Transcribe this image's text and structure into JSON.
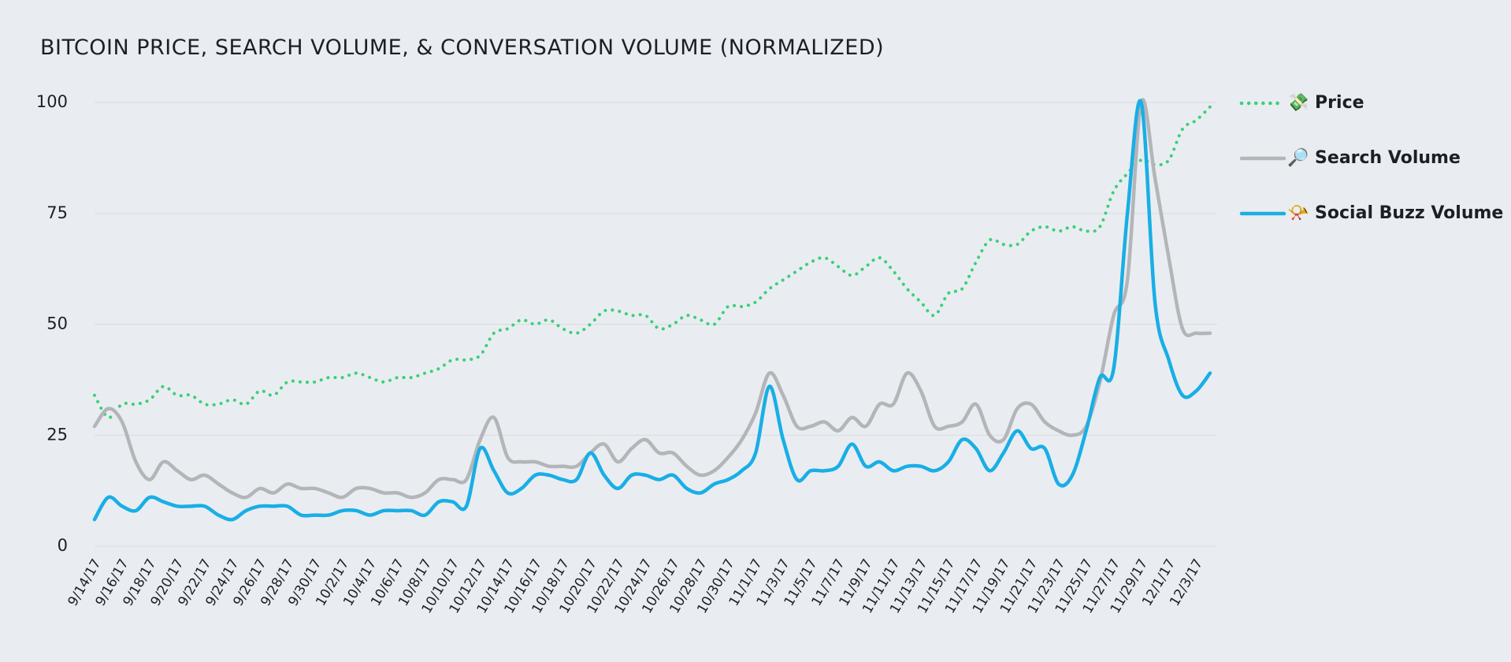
{
  "chart_data": {
    "type": "line",
    "title": "BITCOIN PRICE, SEARCH VOLUME, & CONVERSATION VOLUME (NORMALIZED)",
    "categories": [
      "9/14/17",
      null,
      "9/16/17",
      null,
      "9/18/17",
      null,
      "9/20/17",
      null,
      "9/22/17",
      null,
      "9/24/17",
      null,
      "9/26/17",
      null,
      "9/28/17",
      null,
      "9/30/17",
      null,
      "10/2/17",
      null,
      "10/4/17",
      null,
      "10/6/17",
      null,
      "10/8/17",
      null,
      "10/10/17",
      null,
      "10/12/17",
      null,
      "10/14/17",
      null,
      "10/16/17",
      null,
      "10/18/17",
      null,
      "10/20/17",
      null,
      "10/22/17",
      null,
      "10/24/17",
      null,
      "10/26/17",
      null,
      "10/28/17",
      null,
      "10/30/17",
      null,
      "11/1/17",
      null,
      "11/3/17",
      null,
      "11/5/17",
      null,
      "11/7/17",
      null,
      "11/9/17",
      null,
      "11/11/17",
      null,
      "11/13/17",
      null,
      "11/15/17",
      null,
      "11/17/17",
      null,
      "11/19/17",
      null,
      "11/21/17",
      null,
      "11/23/17",
      null,
      "11/25/17",
      null,
      "11/27/17",
      null,
      "11/29/17",
      null,
      "12/1/17",
      null,
      "12/3/17",
      null
    ],
    "series": [
      {
        "name": "💸 Price",
        "color": "#3ccf7a",
        "dashed": true,
        "values": [
          34,
          29,
          32,
          32,
          33,
          36,
          34,
          34,
          32,
          32,
          33,
          32,
          35,
          34,
          37,
          37,
          37,
          38,
          38,
          39,
          38,
          37,
          38,
          38,
          39,
          40,
          42,
          42,
          43,
          48,
          49,
          51,
          50,
          51,
          49,
          48,
          50,
          53,
          53,
          52,
          52,
          49,
          50,
          52,
          51,
          50,
          54,
          54,
          55,
          58,
          60,
          62,
          64,
          65,
          63,
          61,
          63,
          65,
          62,
          58,
          55,
          52,
          57,
          58,
          64,
          69,
          68,
          68,
          71,
          72,
          71,
          72,
          71,
          72,
          80,
          84,
          87,
          86,
          87,
          94,
          96,
          99
        ]
      },
      {
        "name": "🔎 Search Volume",
        "color": "#b3b5b8",
        "dashed": false,
        "values": [
          27,
          31,
          28,
          19,
          15,
          19,
          17,
          15,
          16,
          14,
          12,
          11,
          13,
          12,
          14,
          13,
          13,
          12,
          11,
          13,
          13,
          12,
          12,
          11,
          12,
          15,
          15,
          15,
          24,
          29,
          20,
          19,
          19,
          18,
          18,
          18,
          21,
          23,
          19,
          22,
          24,
          21,
          21,
          18,
          16,
          17,
          20,
          24,
          30,
          39,
          34,
          27,
          27,
          28,
          26,
          29,
          27,
          32,
          32,
          39,
          35,
          27,
          27,
          28,
          32,
          25,
          24,
          31,
          32,
          28,
          26,
          25,
          27,
          37,
          52,
          60,
          100,
          83,
          65,
          49,
          48,
          48
        ]
      },
      {
        "name": "📯 Social Buzz Volume",
        "color": "#19aee6",
        "dashed": false,
        "values": [
          6,
          11,
          9,
          8,
          11,
          10,
          9,
          9,
          9,
          7,
          6,
          8,
          9,
          9,
          9,
          7,
          7,
          7,
          8,
          8,
          7,
          8,
          8,
          8,
          7,
          10,
          10,
          9,
          22,
          17,
          12,
          13,
          16,
          16,
          15,
          15,
          21,
          16,
          13,
          16,
          16,
          15,
          16,
          13,
          12,
          14,
          15,
          17,
          21,
          36,
          24,
          15,
          17,
          17,
          18,
          23,
          18,
          19,
          17,
          18,
          18,
          17,
          19,
          24,
          22,
          17,
          21,
          26,
          22,
          22,
          14,
          16,
          26,
          38,
          40,
          75,
          100,
          55,
          42,
          34,
          35,
          39
        ]
      }
    ],
    "ylim": [
      0,
      100
    ],
    "yticks": [
      0,
      25,
      50,
      75,
      100
    ],
    "grid": true,
    "legend": "right"
  }
}
